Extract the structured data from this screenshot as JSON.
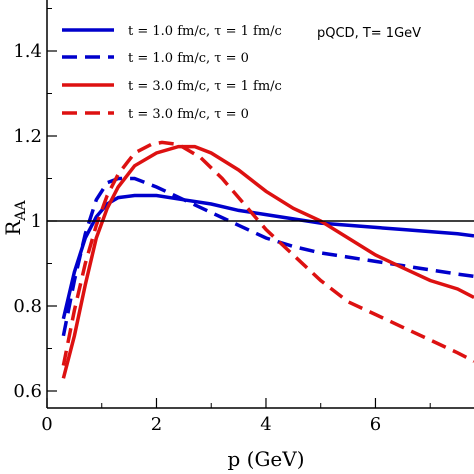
{
  "chart_data": {
    "type": "line",
    "xlabel": "p (GeV)",
    "ylabel": "R_AA",
    "xlim": [
      0,
      7.8
    ],
    "ylim": [
      0.56,
      1.52
    ],
    "xticks": [
      0,
      2,
      4,
      6
    ],
    "yticks": [
      0.6,
      0.8,
      1,
      1.2,
      1.4
    ],
    "xtick_labels": [
      "0",
      "2",
      "4",
      "6"
    ],
    "ytick_labels": [
      "0.6",
      "0.8",
      "1",
      "1.2",
      "1.4"
    ],
    "reference_line": 1.0,
    "annotation": "pQCD,  T= 1GeV",
    "legend_position": "top",
    "grid": false,
    "series": [
      {
        "name": "t = 1.0 fm/c, τ = 1 fm/c",
        "color": "#0000cc",
        "dash": "solid",
        "x": [
          0.3,
          0.5,
          0.7,
          0.9,
          1.1,
          1.3,
          1.6,
          2.0,
          2.5,
          3.0,
          3.5,
          4.0,
          4.5,
          5.0,
          5.5,
          6.0,
          6.5,
          7.0,
          7.5,
          7.8
        ],
        "y": [
          0.77,
          0.88,
          0.96,
          1.01,
          1.04,
          1.055,
          1.06,
          1.06,
          1.05,
          1.04,
          1.025,
          1.015,
          1.005,
          0.995,
          0.99,
          0.985,
          0.98,
          0.975,
          0.97,
          0.965
        ]
      },
      {
        "name": "t = 1.0 fm/c, τ = 0",
        "color": "#0000cc",
        "dash": "dashed",
        "x": [
          0.3,
          0.5,
          0.7,
          0.9,
          1.1,
          1.3,
          1.6,
          2.0,
          2.5,
          3.0,
          3.5,
          4.0,
          4.5,
          5.0,
          5.5,
          6.0,
          6.5,
          7.0,
          7.5,
          7.8
        ],
        "y": [
          0.73,
          0.86,
          0.97,
          1.05,
          1.09,
          1.1,
          1.1,
          1.08,
          1.05,
          1.02,
          0.99,
          0.96,
          0.94,
          0.925,
          0.915,
          0.905,
          0.895,
          0.885,
          0.875,
          0.87
        ]
      },
      {
        "name": "t = 3.0 fm/c, τ = 1 fm/c",
        "color": "#dd1111",
        "dash": "solid",
        "x": [
          0.3,
          0.5,
          0.7,
          0.9,
          1.1,
          1.3,
          1.6,
          2.0,
          2.4,
          2.7,
          3.0,
          3.5,
          4.0,
          4.5,
          5.0,
          5.5,
          6.0,
          6.5,
          7.0,
          7.5,
          7.8
        ],
        "y": [
          0.63,
          0.73,
          0.85,
          0.96,
          1.03,
          1.08,
          1.13,
          1.16,
          1.175,
          1.175,
          1.16,
          1.12,
          1.07,
          1.03,
          1.0,
          0.96,
          0.92,
          0.89,
          0.86,
          0.84,
          0.82
        ]
      },
      {
        "name": "t = 3.0 fm/c, τ = 0",
        "color": "#dd1111",
        "dash": "dashed",
        "x": [
          0.3,
          0.5,
          0.7,
          0.9,
          1.1,
          1.3,
          1.6,
          1.9,
          2.1,
          2.4,
          2.8,
          3.2,
          3.6,
          4.0,
          4.5,
          5.0,
          5.5,
          6.0,
          6.5,
          7.0,
          7.5,
          7.8
        ],
        "y": [
          0.66,
          0.79,
          0.9,
          0.99,
          1.06,
          1.11,
          1.16,
          1.18,
          1.185,
          1.18,
          1.15,
          1.1,
          1.04,
          0.98,
          0.92,
          0.86,
          0.81,
          0.78,
          0.75,
          0.72,
          0.69,
          0.67
        ]
      }
    ]
  }
}
